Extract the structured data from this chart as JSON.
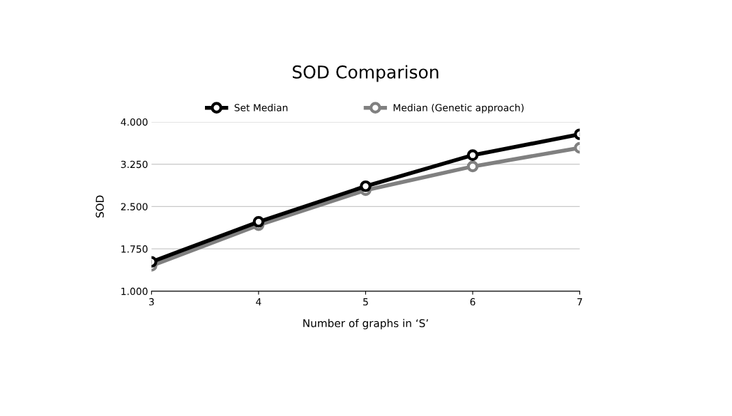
{
  "chart_data": {
    "type": "line",
    "title": "SOD Comparison",
    "xlabel": "Number of graphs in ‘S’",
    "ylabel": "SOD",
    "x": [
      3,
      4,
      5,
      6,
      7
    ],
    "series": [
      {
        "name": "Set Median",
        "color": "#000000",
        "values": [
          1.52,
          2.23,
          2.86,
          3.41,
          3.78
        ]
      },
      {
        "name": "Median (Genetic approach)",
        "color": "#808080",
        "values": [
          1.45,
          2.17,
          2.79,
          3.21,
          3.54
        ]
      }
    ],
    "xlim": [
      3,
      7
    ],
    "xticks": [
      3,
      4,
      5,
      6,
      7
    ],
    "ylim": [
      1.0,
      4.0
    ],
    "yticks": [
      {
        "value": 1.0,
        "label": "1.000"
      },
      {
        "value": 1.75,
        "label": "1.750"
      },
      {
        "value": 2.5,
        "label": "2.500"
      },
      {
        "value": 3.25,
        "label": "3.250"
      },
      {
        "value": 4.0,
        "label": "4.000"
      }
    ],
    "grid": "y",
    "legend": "top",
    "marker": "circle",
    "line_style": "solid"
  }
}
